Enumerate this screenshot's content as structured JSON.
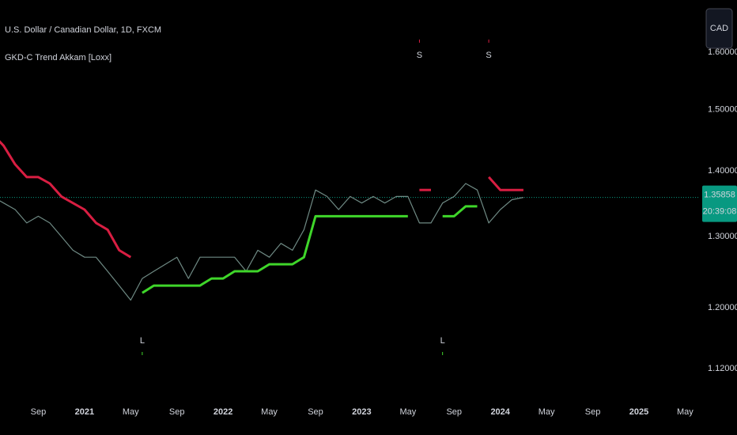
{
  "chart_data": {
    "type": "line",
    "title": "U.S. Dollar / Canadian Dollar, 1D, FXCM",
    "subtitle": "GKD-C Trend Akkam [Loxx]",
    "currency": "CAD",
    "log_scale": true,
    "xlim": [
      "2020-05",
      "2025-06"
    ],
    "ylim": [
      1.082,
      1.697
    ],
    "yticks": [
      {
        "value": 1.12,
        "label": "1.12000"
      },
      {
        "value": 1.2,
        "label": "1.20000"
      },
      {
        "value": 1.3,
        "label": "1.30000"
      },
      {
        "value": 1.4,
        "label": "1.40000"
      },
      {
        "value": 1.5,
        "label": "1.50000"
      },
      {
        "value": 1.6,
        "label": "1.60000"
      }
    ],
    "xticks": [
      {
        "value": "2020-09",
        "label": "Sep"
      },
      {
        "value": "2021-01",
        "label": "2021"
      },
      {
        "value": "2021-05",
        "label": "May"
      },
      {
        "value": "2021-09",
        "label": "Sep"
      },
      {
        "value": "2022-01",
        "label": "2022"
      },
      {
        "value": "2022-05",
        "label": "May"
      },
      {
        "value": "2022-09",
        "label": "Sep"
      },
      {
        "value": "2023-01",
        "label": "2023"
      },
      {
        "value": "2023-05",
        "label": "May"
      },
      {
        "value": "2023-09",
        "label": "Sep"
      },
      {
        "value": "2024-01",
        "label": "2024"
      },
      {
        "value": "2024-05",
        "label": "May"
      },
      {
        "value": "2024-09",
        "label": "Sep"
      },
      {
        "value": "2025-01",
        "label": "2025"
      },
      {
        "value": "2025-05",
        "label": "May"
      }
    ],
    "x": [
      "2020-05",
      "2020-06",
      "2020-07",
      "2020-08",
      "2020-09",
      "2020-10",
      "2020-11",
      "2020-12",
      "2021-01",
      "2021-02",
      "2021-03",
      "2021-04",
      "2021-05",
      "2021-06",
      "2021-07",
      "2021-08",
      "2021-09",
      "2021-10",
      "2021-11",
      "2021-12",
      "2022-01",
      "2022-02",
      "2022-03",
      "2022-04",
      "2022-05",
      "2022-06",
      "2022-07",
      "2022-08",
      "2022-09",
      "2022-10",
      "2022-11",
      "2022-12",
      "2023-01",
      "2023-02",
      "2023-03",
      "2023-04",
      "2023-05",
      "2023-06",
      "2023-07",
      "2023-08",
      "2023-09",
      "2023-10",
      "2023-11",
      "2023-12",
      "2024-01",
      "2024-02",
      "2024-03"
    ],
    "series": [
      {
        "color": "#6f8a84",
        "values": [
          1.36,
          1.35,
          1.34,
          1.32,
          1.33,
          1.32,
          1.3,
          1.28,
          1.27,
          1.27,
          1.25,
          1.23,
          1.21,
          1.24,
          1.25,
          1.26,
          1.27,
          1.24,
          1.27,
          1.27,
          1.27,
          1.27,
          1.25,
          1.28,
          1.27,
          1.29,
          1.28,
          1.31,
          1.37,
          1.36,
          1.34,
          1.36,
          1.35,
          1.36,
          1.35,
          1.36,
          1.36,
          1.32,
          1.32,
          1.35,
          1.36,
          1.38,
          1.37,
          1.32,
          1.34,
          1.355,
          1.35858
        ]
      },
      {
        "color": "#d81e42",
        "values": [
          1.46,
          1.44,
          1.41,
          1.39,
          1.39,
          1.38,
          1.36,
          1.35,
          1.34,
          1.32,
          1.31,
          1.28,
          1.27,
          null,
          null,
          null,
          null,
          null,
          null,
          null,
          null,
          null,
          null,
          null,
          null,
          null,
          null,
          null,
          null,
          null,
          null,
          null,
          null,
          null,
          null,
          null,
          null,
          1.37,
          1.37,
          null,
          null,
          null,
          null,
          1.39,
          1.37,
          1.37,
          1.37
        ]
      },
      {
        "color": "#3fd62a",
        "values": [
          null,
          null,
          null,
          null,
          null,
          null,
          null,
          null,
          null,
          null,
          null,
          null,
          null,
          1.22,
          1.23,
          1.23,
          1.23,
          1.23,
          1.23,
          1.24,
          1.24,
          1.25,
          1.25,
          1.25,
          1.26,
          1.26,
          1.26,
          1.27,
          1.33,
          1.33,
          1.33,
          1.33,
          1.33,
          1.33,
          1.33,
          1.33,
          1.33,
          null,
          null,
          1.33,
          1.33,
          1.345,
          1.345,
          null,
          null,
          null,
          null
        ]
      }
    ],
    "signals": [
      {
        "x": "2021-06",
        "label": "L",
        "color": "#3fd62a"
      },
      {
        "x": "2023-06",
        "label": "S",
        "color": "#d81e42"
      },
      {
        "x": "2023-08",
        "label": "L",
        "color": "#3fd62a"
      },
      {
        "x": "2023-12",
        "label": "S",
        "color": "#d81e42"
      }
    ],
    "last_price": 1.35858,
    "countdown": "20:39:08",
    "last_price_color": "#089981"
  }
}
